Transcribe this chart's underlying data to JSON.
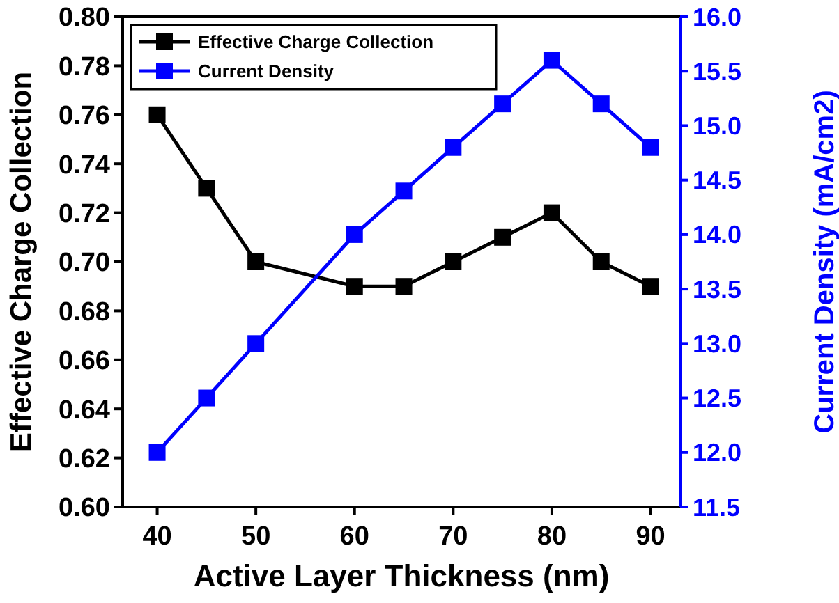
{
  "chart_data": {
    "type": "line",
    "xlabel": "Active Layer Thickness (nm)",
    "ylabel": "Effective Charge Collection",
    "y2label": "Current Density (mA/cm2)",
    "x": [
      40,
      45,
      50,
      60,
      65,
      70,
      75,
      80,
      85,
      90
    ],
    "xlim": [
      36.5,
      93
    ],
    "xticks": [
      40,
      50,
      60,
      70,
      80,
      90
    ],
    "ylim": [
      0.6,
      0.8
    ],
    "yticks": [
      {
        "value": 0.6,
        "label": "0.60"
      },
      {
        "value": 0.62,
        "label": "0.62"
      },
      {
        "value": 0.64,
        "label": "0.64"
      },
      {
        "value": 0.66,
        "label": "0.66"
      },
      {
        "value": 0.68,
        "label": "0.68"
      },
      {
        "value": 0.7,
        "label": "0.70"
      },
      {
        "value": 0.72,
        "label": "0.72"
      },
      {
        "value": 0.74,
        "label": "0.74"
      },
      {
        "value": 0.76,
        "label": "0.76"
      },
      {
        "value": 0.78,
        "label": "0.78"
      },
      {
        "value": 0.8,
        "label": "0.80"
      }
    ],
    "y2lim": [
      11.5,
      16
    ],
    "y2ticks": [
      11.5,
      {
        "value": 12,
        "label": "12.0"
      },
      12.5,
      {
        "value": 13,
        "label": "13.0"
      },
      13.5,
      {
        "value": 14,
        "label": "14.0"
      },
      14.5,
      {
        "value": 15,
        "label": "15.0"
      },
      15.5,
      {
        "value": 16,
        "label": "16.0"
      }
    ],
    "series": [
      {
        "name": "Effective Charge Collection",
        "color": "#000000",
        "values": [
          0.76,
          0.73,
          0.7,
          0.69,
          0.69,
          0.7,
          0.71,
          0.72,
          0.7,
          0.69
        ]
      },
      {
        "name": "Current Density",
        "color": "#0000ff",
        "axis": "y2",
        "values": [
          12.0,
          12.5,
          13.0,
          14.0,
          14.4,
          14.8,
          15.2,
          15.6,
          15.2,
          14.8
        ]
      }
    ],
    "marker": "square",
    "line_style": "solid",
    "legend": "top left",
    "grid": false
  }
}
